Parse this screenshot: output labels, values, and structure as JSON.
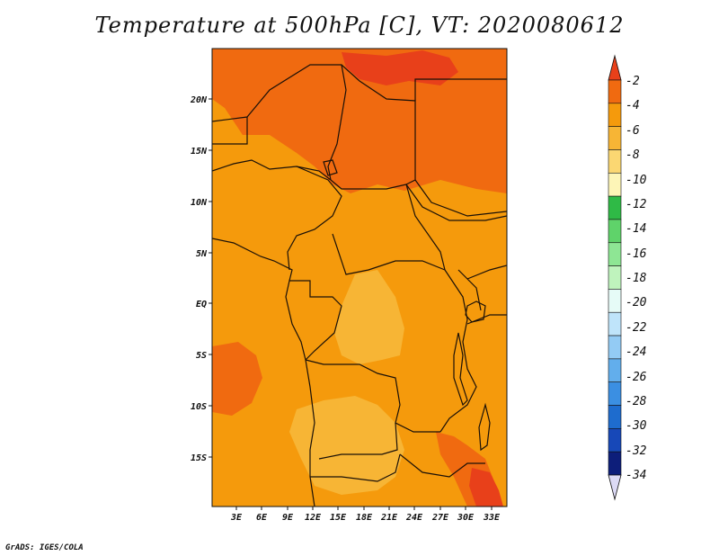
{
  "title": "Temperature at 500hPa [C], VT: 2020080612",
  "credit": "GrADS: IGES/COLA",
  "axes": {
    "lat_labels": [
      "20N",
      "15N",
      "10N",
      "5N",
      "EQ",
      "5S",
      "10S",
      "15S"
    ],
    "lon_labels": [
      "3E",
      "6E",
      "9E",
      "12E",
      "15E",
      "18E",
      "21E",
      "24E",
      "27E",
      "30E",
      "33E"
    ]
  },
  "colorbar": {
    "labels": [
      "-2",
      "-4",
      "-6",
      "-8",
      "-10",
      "-12",
      "-14",
      "-16",
      "-18",
      "-20",
      "-22",
      "-24",
      "-26",
      "-28",
      "-30",
      "-32",
      "-34"
    ],
    "colors": [
      "#e8401a",
      "#f06a10",
      "#f59a0c",
      "#f7b535",
      "#fbd772",
      "#fdf5b7",
      "#2fba46",
      "#5fd36a",
      "#8ee694",
      "#bff3bd",
      "#e6fbf7",
      "#bfe4fa",
      "#93cbf4",
      "#62aeec",
      "#3b8fe2",
      "#1e6cce",
      "#1748b8",
      "#0d1e7a",
      "#dcdaf5"
    ]
  },
  "map_fields": {
    "base_color": "#f59a0c",
    "warm_color": "#f06a10",
    "cool_color": "#f7b535",
    "hot_color": "#e8401a"
  }
}
